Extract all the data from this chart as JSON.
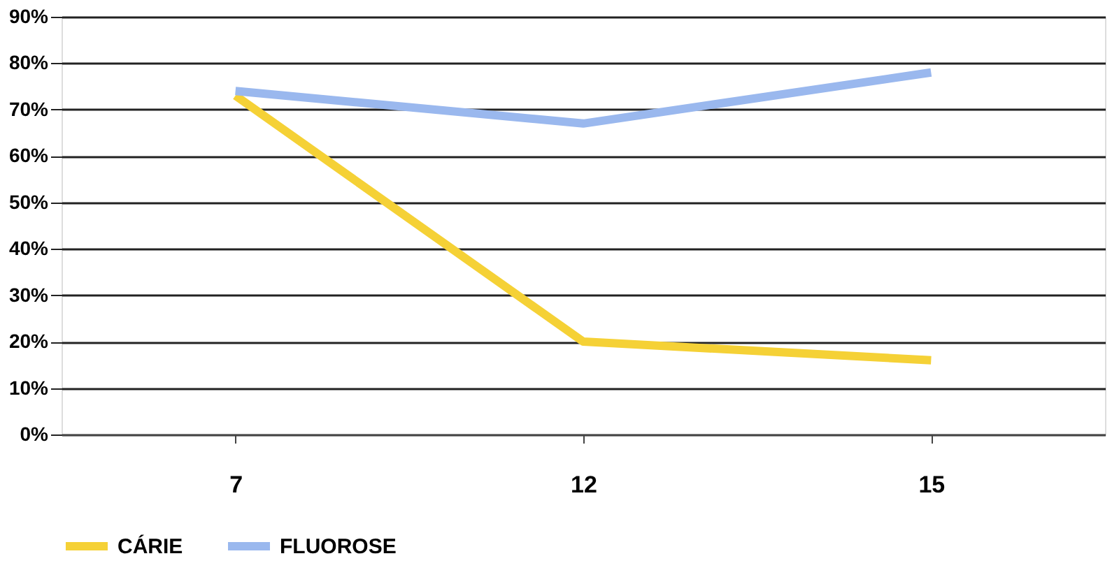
{
  "chart_data": {
    "type": "line",
    "categories": [
      "7",
      "12",
      "15"
    ],
    "series": [
      {
        "name": "CÁRIE",
        "color": "#f5d136",
        "values": [
          73,
          20,
          16
        ]
      },
      {
        "name": "FLUOROSE",
        "color": "#9ab8ee",
        "values": [
          74,
          67,
          78
        ]
      }
    ],
    "ylim": [
      0,
      90
    ],
    "yticks": [
      {
        "value": 0,
        "label": "0%"
      },
      {
        "value": 10,
        "label": "10%"
      },
      {
        "value": 20,
        "label": "20%"
      },
      {
        "value": 30,
        "label": "30%"
      },
      {
        "value": 40,
        "label": "40%"
      },
      {
        "value": 50,
        "label": "50%"
      },
      {
        "value": 60,
        "label": "60%"
      },
      {
        "value": 70,
        "label": "70%"
      },
      {
        "value": 80,
        "label": "80%"
      },
      {
        "value": 90,
        "label": "90%"
      }
    ],
    "grid": "y",
    "legend": "bottom",
    "marker": "none",
    "line_style": "solid"
  }
}
